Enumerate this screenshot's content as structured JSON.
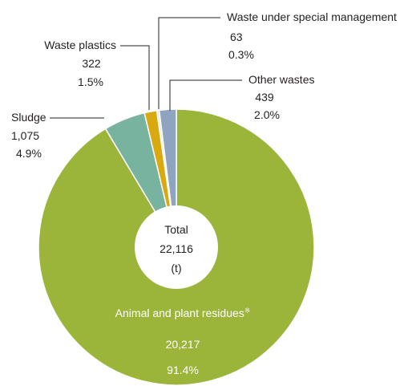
{
  "chart_data": {
    "type": "pie",
    "style": "donut",
    "unit": "(t)",
    "center": {
      "title": "Total",
      "value": "22,116",
      "unit": "(t)"
    },
    "slices": [
      {
        "name": "Animal and plant residues",
        "mark": "※",
        "value": 20217,
        "value_label": "20,217",
        "percent": 91.4,
        "percent_label": "91.4%",
        "color": "#9bb53b"
      },
      {
        "name": "Sludge",
        "value": 1075,
        "value_label": "1,075",
        "percent": 4.9,
        "percent_label": "4.9%",
        "color": "#77b39f"
      },
      {
        "name": "Waste plastics",
        "value": 322,
        "value_label": "322",
        "percent": 1.5,
        "percent_label": "1.5%",
        "color": "#d8a910"
      },
      {
        "name": "Waste under special management",
        "value": 63,
        "value_label": "63",
        "percent": 0.3,
        "percent_label": "0.3%",
        "color": "#e7edd3"
      },
      {
        "name": "Other wastes",
        "value": 439,
        "value_label": "439",
        "percent": 2.0,
        "percent_label": "2.0%",
        "color": "#8fa5bf"
      }
    ]
  }
}
